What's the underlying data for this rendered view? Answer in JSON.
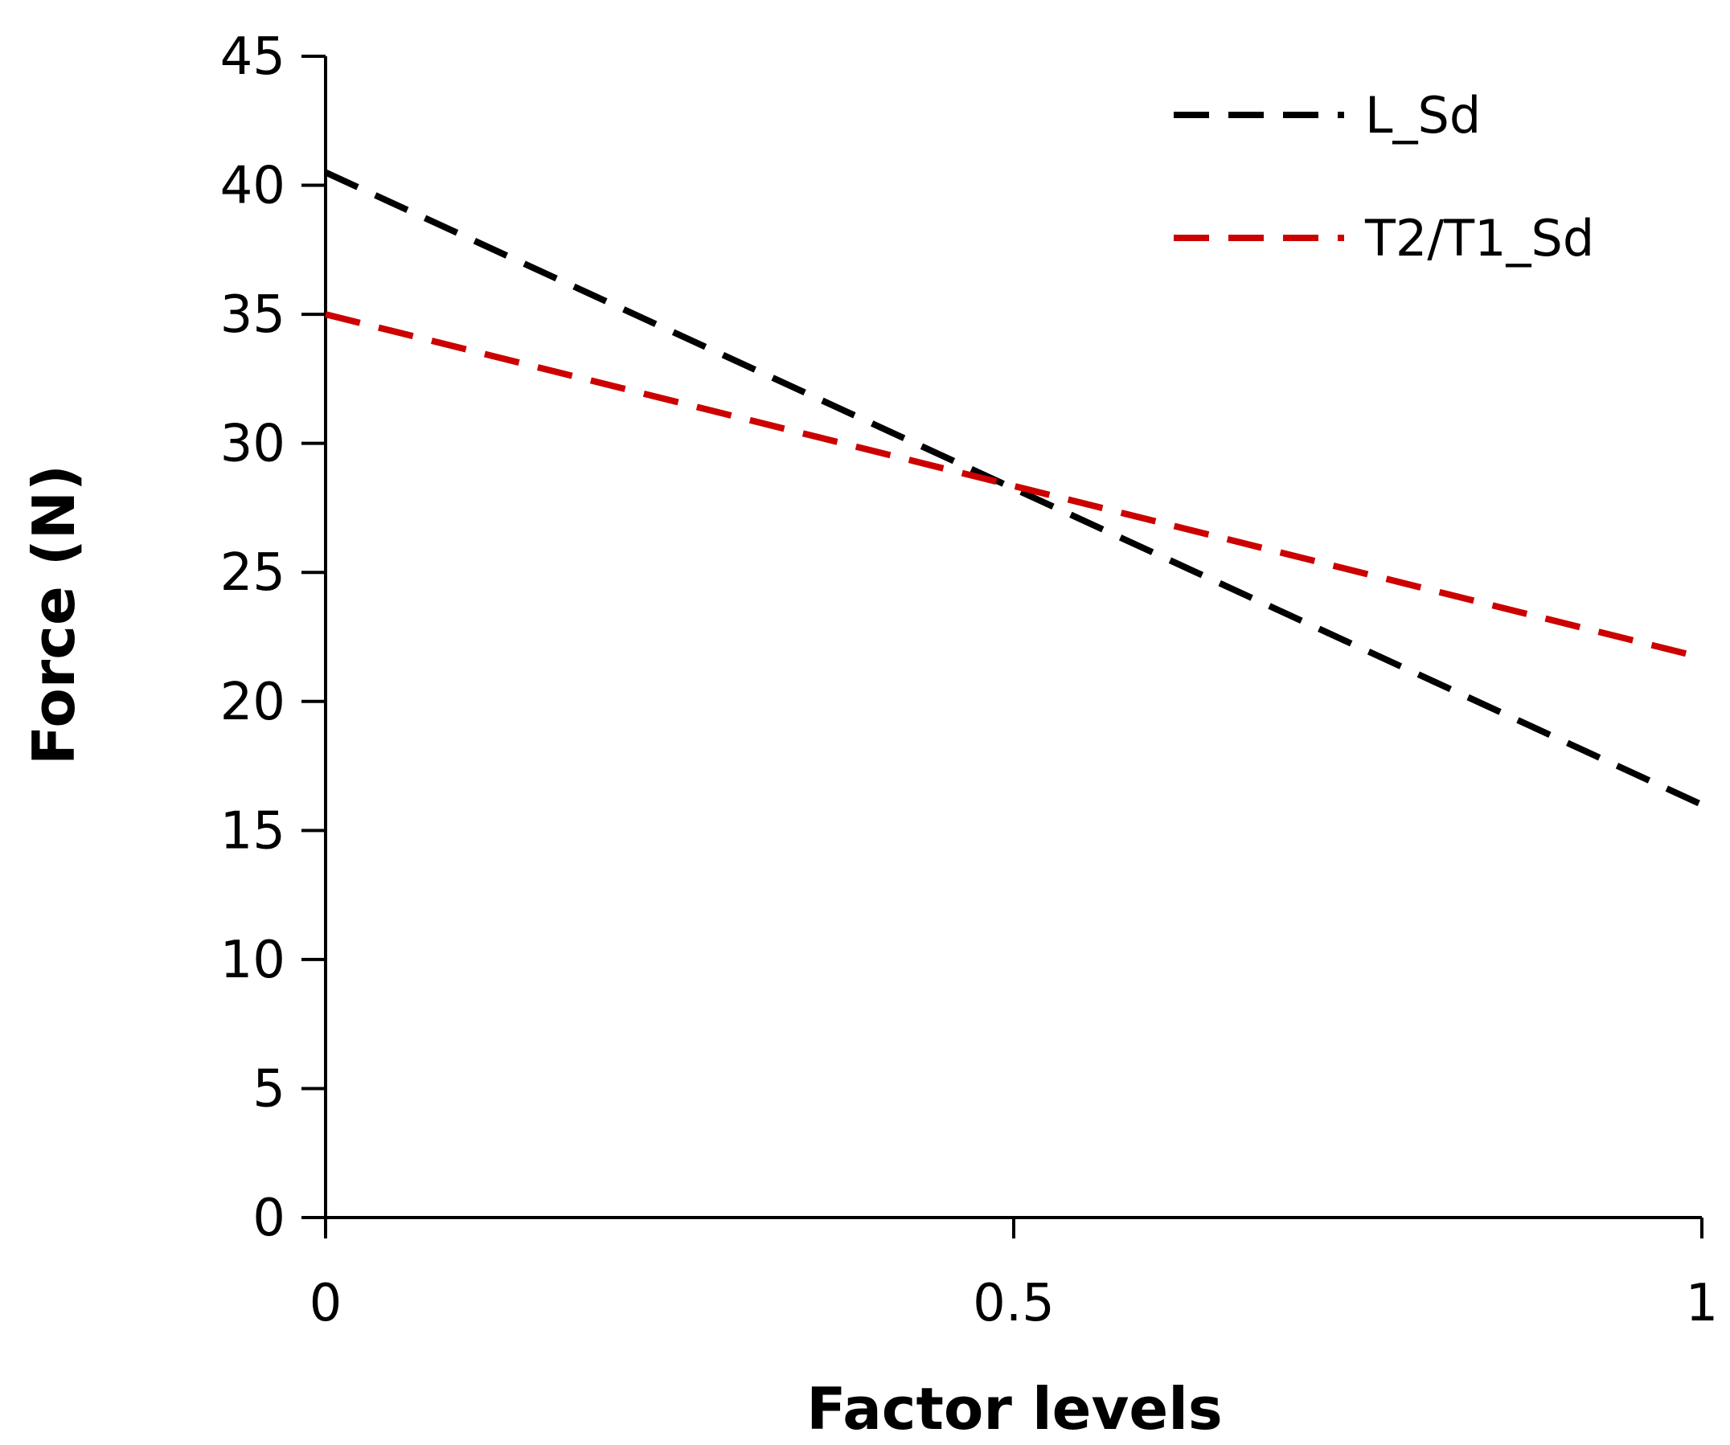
{
  "chart_data": {
    "type": "line",
    "title": "",
    "xlabel": "Factor levels",
    "ylabel": "Force (N)",
    "xlim": [
      0,
      1
    ],
    "ylim": [
      0,
      45
    ],
    "xticks": [
      "0",
      "0.5",
      "1"
    ],
    "yticks": [
      "0",
      "5",
      "10",
      "15",
      "20",
      "25",
      "30",
      "35",
      "40",
      "45"
    ],
    "grid": false,
    "legend_position": "top-right",
    "series": [
      {
        "name": "L_Sd",
        "color": "#000000",
        "style": "dashed",
        "x": [
          0,
          1
        ],
        "y": [
          40.5,
          16.0
        ]
      },
      {
        "name": "T2/T1_Sd",
        "color": "#cc0000",
        "style": "dashed",
        "x": [
          0,
          1
        ],
        "y": [
          35.0,
          21.7
        ]
      }
    ]
  }
}
